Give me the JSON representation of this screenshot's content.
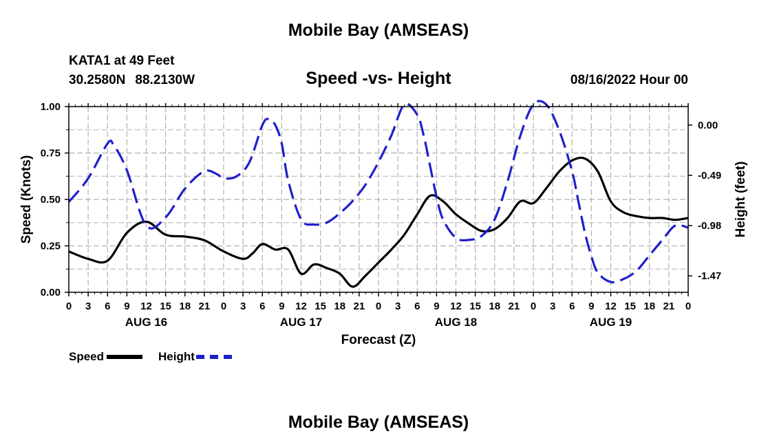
{
  "header": {
    "title": "Mobile Bay (AMSEAS)",
    "station": "KATA1 at 49 Feet",
    "lat": "30.2580N",
    "lon": "88.2130W",
    "subtitle": "Speed -vs- Height",
    "datetime": "08/16/2022 Hour 00"
  },
  "footer": {
    "title": "Mobile Bay (AMSEAS)"
  },
  "legend": {
    "speed_label": "Speed",
    "height_label": "Height"
  },
  "colors": {
    "speed": "#000000",
    "height": "#1f1fcc",
    "grid": "#b0b0b0"
  },
  "chart_data": {
    "type": "line",
    "xlabel": "Forecast (Z)",
    "ylabel": "Speed (Knots)",
    "y2label": "Height (feet)",
    "x_unit": "forecast hour",
    "xlim": [
      0,
      96
    ],
    "ylim": [
      0,
      1.0
    ],
    "y2lim": [
      -1.63,
      0.18
    ],
    "x_tick_step_hours": 3,
    "x_tick_labels": [
      "0",
      "3",
      "6",
      "9",
      "12",
      "15",
      "18",
      "21",
      "0",
      "3",
      "6",
      "9",
      "12",
      "15",
      "18",
      "21",
      "0",
      "3",
      "6",
      "9",
      "12",
      "15",
      "18",
      "21",
      "0",
      "3",
      "6",
      "9",
      "12",
      "15",
      "18",
      "21",
      "0"
    ],
    "day_labels": [
      {
        "hour": 12,
        "label": "AUG 16"
      },
      {
        "hour": 36,
        "label": "AUG 17"
      },
      {
        "hour": 60,
        "label": "AUG 18"
      },
      {
        "hour": 84,
        "label": "AUG 19"
      }
    ],
    "y_ticks": [
      0.0,
      0.25,
      0.5,
      0.75,
      1.0
    ],
    "y_tick_labels": [
      "0.00",
      "0.25",
      "0.50",
      "0.75",
      "1.00"
    ],
    "y2_ticks": [
      0.0,
      -0.49,
      -0.98,
      -1.47
    ],
    "y2_tick_labels": [
      "0.00",
      "-0.49",
      "-0.98",
      "-1.47"
    ],
    "grid": true,
    "series": [
      {
        "name": "Speed",
        "axis": "left",
        "style": "solid",
        "x": [
          0,
          3,
          6,
          9,
          12,
          15,
          18,
          21,
          24,
          27,
          28.5,
          30,
          32,
          34,
          36,
          38,
          40,
          42,
          44,
          46,
          48,
          50,
          52,
          54,
          56,
          58,
          60,
          62,
          64,
          66,
          68,
          70,
          72,
          74,
          76,
          78,
          80,
          82,
          84,
          86,
          88,
          90,
          92,
          94,
          96
        ],
        "y": [
          0.22,
          0.18,
          0.17,
          0.32,
          0.38,
          0.31,
          0.3,
          0.28,
          0.22,
          0.18,
          0.21,
          0.26,
          0.23,
          0.23,
          0.1,
          0.15,
          0.13,
          0.1,
          0.03,
          0.09,
          0.16,
          0.23,
          0.31,
          0.42,
          0.52,
          0.49,
          0.42,
          0.37,
          0.33,
          0.34,
          0.4,
          0.49,
          0.48,
          0.56,
          0.65,
          0.71,
          0.72,
          0.65,
          0.49,
          0.43,
          0.41,
          0.4,
          0.4,
          0.39,
          0.4
        ]
      },
      {
        "name": "Height",
        "axis": "right",
        "style": "dashed",
        "x": [
          0,
          3,
          6,
          7,
          9,
          12,
          15,
          18,
          21,
          23,
          24,
          26,
          28,
          30,
          31,
          32,
          33,
          34,
          36,
          38,
          40,
          42,
          44,
          46,
          48,
          50,
          52,
          54,
          55,
          56,
          57,
          58,
          60,
          62,
          64,
          66,
          68,
          70,
          72,
          74,
          76,
          78,
          79,
          80,
          81,
          82,
          84,
          86,
          88,
          90,
          92,
          94,
          96
        ],
        "y": [
          -0.75,
          -0.52,
          -0.18,
          -0.2,
          -0.44,
          -0.98,
          -0.9,
          -0.62,
          -0.45,
          -0.48,
          -0.52,
          -0.5,
          -0.36,
          0.0,
          0.06,
          0.0,
          -0.18,
          -0.54,
          -0.92,
          -0.97,
          -0.95,
          -0.86,
          -0.74,
          -0.58,
          -0.36,
          -0.1,
          0.2,
          0.1,
          -0.1,
          -0.4,
          -0.7,
          -0.92,
          -1.1,
          -1.12,
          -1.08,
          -0.92,
          -0.55,
          -0.1,
          0.2,
          0.2,
          -0.05,
          -0.45,
          -0.75,
          -1.05,
          -1.28,
          -1.44,
          -1.53,
          -1.5,
          -1.42,
          -1.27,
          -1.12,
          -0.98,
          -1.0
        ]
      }
    ]
  }
}
